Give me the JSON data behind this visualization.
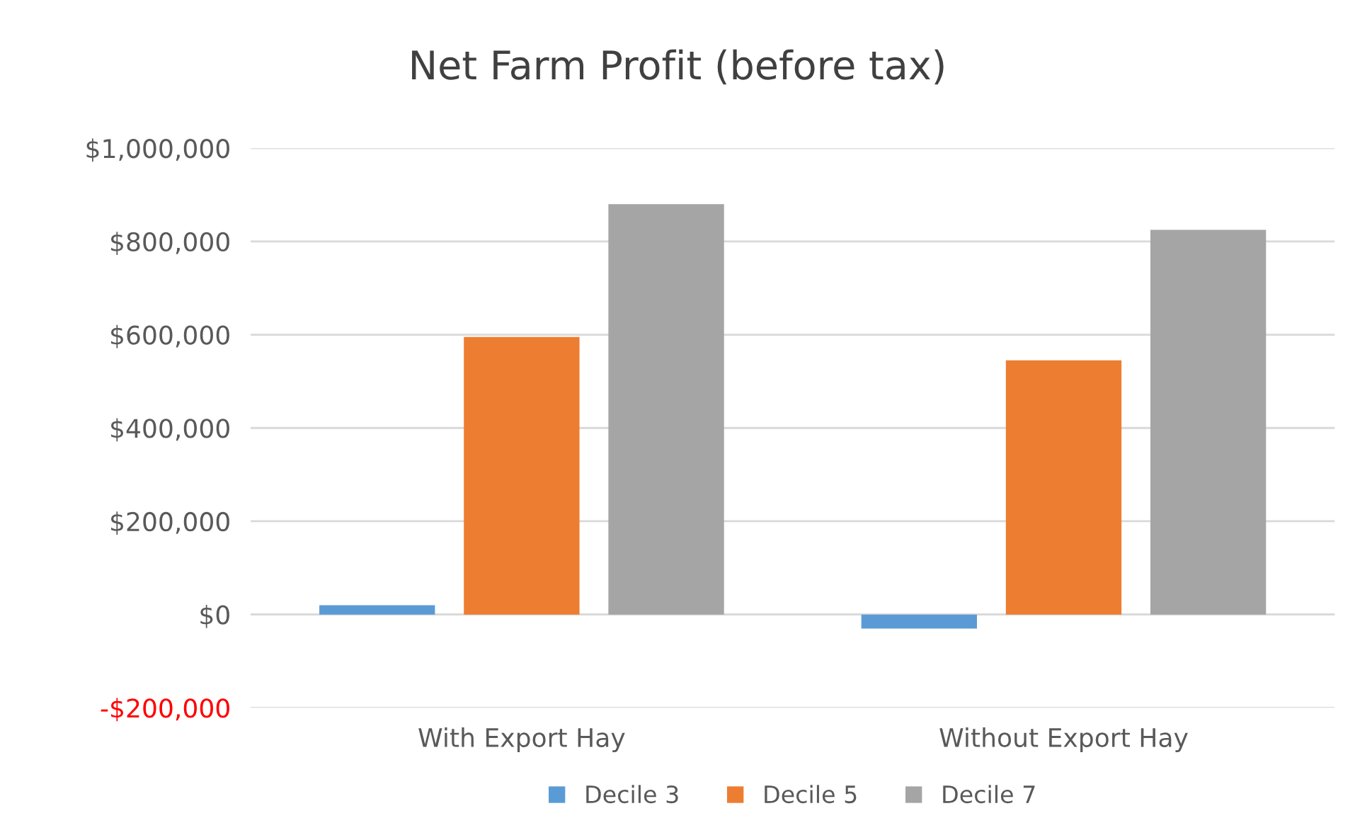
{
  "chart_data": {
    "type": "bar",
    "title": "Net Farm Profit (before tax)",
    "categories": [
      "With Export Hay",
      "Without Export Hay"
    ],
    "series": [
      {
        "name": "Decile 3",
        "color": "#5b9bd5",
        "values": [
          20000,
          -30000
        ]
      },
      {
        "name": "Decile 5",
        "color": "#ed7d31",
        "values": [
          595000,
          545000
        ]
      },
      {
        "name": "Decile 7",
        "color": "#a5a5a5",
        "values": [
          880000,
          825000
        ]
      }
    ],
    "ylim": [
      -200000,
      1000000
    ],
    "yticks": [
      {
        "value": -200000,
        "label": "-$200,000"
      },
      {
        "value": 0,
        "label": "$0"
      },
      {
        "value": 200000,
        "label": "$200,000"
      },
      {
        "value": 400000,
        "label": "$400,000"
      },
      {
        "value": 600000,
        "label": "$600,000"
      },
      {
        "value": 800000,
        "label": "$800,000"
      },
      {
        "value": 1000000,
        "label": "$1,000,000"
      }
    ],
    "grid": "y",
    "legend": "bottom"
  }
}
